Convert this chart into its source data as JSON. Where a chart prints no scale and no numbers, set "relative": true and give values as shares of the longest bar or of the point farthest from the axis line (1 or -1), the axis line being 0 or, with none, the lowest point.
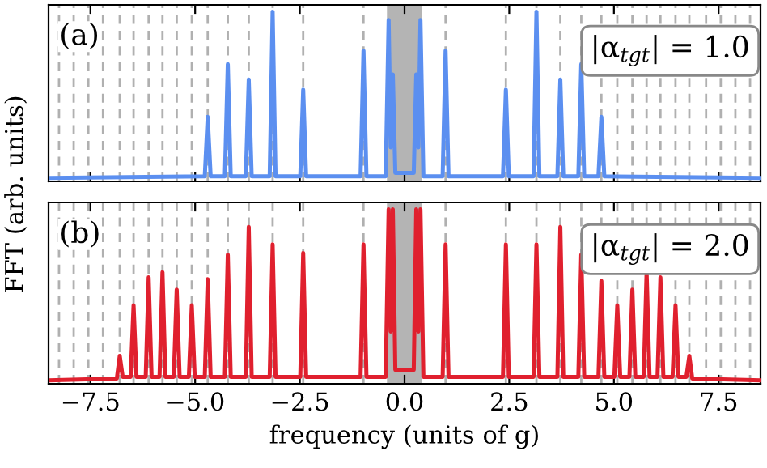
{
  "chart_data": [
    {
      "type": "line",
      "relative": true,
      "ylabel": "FFT (arb. units)",
      "tick_labels": false,
      "xlim": [
        -8.5,
        8.5
      ],
      "xticks": [
        -7.5,
        -5,
        -2.5,
        0,
        2.5,
        5,
        7.5
      ],
      "annotations": [
        "(a)",
        "|α$_{tgt}$| = 1.0"
      ],
      "bands": [
        {
          "axis": "x",
          "from": -0.42,
          "to": 0.42,
          "color": "#b4b4b4"
        }
      ],
      "ref_lines": [
        {
          "axis": "x",
          "value": -8.25,
          "color": "#b0b0b0",
          "line_style": "dashed"
        },
        {
          "axis": "x",
          "value": -7.9,
          "color": "#b0b0b0",
          "line_style": "dashed"
        },
        {
          "axis": "x",
          "value": -7.55,
          "color": "#b0b0b0",
          "line_style": "dashed"
        },
        {
          "axis": "x",
          "value": -7.2,
          "color": "#b0b0b0",
          "line_style": "dashed"
        },
        {
          "axis": "x",
          "value": -6.8,
          "color": "#b0b0b0",
          "line_style": "dashed"
        },
        {
          "axis": "x",
          "value": -6.47,
          "color": "#b0b0b0",
          "line_style": "dashed"
        },
        {
          "axis": "x",
          "value": -6.11,
          "color": "#b0b0b0",
          "line_style": "dashed"
        },
        {
          "axis": "x",
          "value": -5.78,
          "color": "#b0b0b0",
          "line_style": "dashed"
        },
        {
          "axis": "x",
          "value": -5.44,
          "color": "#b0b0b0",
          "line_style": "dashed"
        },
        {
          "axis": "x",
          "value": -5.08,
          "color": "#b0b0b0",
          "line_style": "dashed"
        },
        {
          "axis": "x",
          "value": -4.7,
          "color": "#b0b0b0",
          "line_style": "dashed"
        },
        {
          "axis": "x",
          "value": -4.22,
          "color": "#b0b0b0",
          "line_style": "dashed"
        },
        {
          "axis": "x",
          "value": -3.72,
          "color": "#b0b0b0",
          "line_style": "dashed"
        },
        {
          "axis": "x",
          "value": -3.15,
          "color": "#b0b0b0",
          "line_style": "dashed"
        },
        {
          "axis": "x",
          "value": -2.42,
          "color": "#b0b0b0",
          "line_style": "dashed"
        },
        {
          "axis": "x",
          "value": -0.98,
          "color": "#b0b0b0",
          "line_style": "dashed"
        },
        {
          "axis": "x",
          "value": 0.98,
          "color": "#b0b0b0",
          "line_style": "dashed"
        },
        {
          "axis": "x",
          "value": 2.42,
          "color": "#b0b0b0",
          "line_style": "dashed"
        },
        {
          "axis": "x",
          "value": 3.15,
          "color": "#b0b0b0",
          "line_style": "dashed"
        },
        {
          "axis": "x",
          "value": 3.72,
          "color": "#b0b0b0",
          "line_style": "dashed"
        },
        {
          "axis": "x",
          "value": 4.22,
          "color": "#b0b0b0",
          "line_style": "dashed"
        },
        {
          "axis": "x",
          "value": 4.7,
          "color": "#b0b0b0",
          "line_style": "dashed"
        },
        {
          "axis": "x",
          "value": 5.08,
          "color": "#b0b0b0",
          "line_style": "dashed"
        },
        {
          "axis": "x",
          "value": 5.44,
          "color": "#b0b0b0",
          "line_style": "dashed"
        },
        {
          "axis": "x",
          "value": 5.78,
          "color": "#b0b0b0",
          "line_style": "dashed"
        },
        {
          "axis": "x",
          "value": 6.11,
          "color": "#b0b0b0",
          "line_style": "dashed"
        },
        {
          "axis": "x",
          "value": 6.47,
          "color": "#b0b0b0",
          "line_style": "dashed"
        },
        {
          "axis": "x",
          "value": 6.8,
          "color": "#b0b0b0",
          "line_style": "dashed"
        },
        {
          "axis": "x",
          "value": 7.2,
          "color": "#b0b0b0",
          "line_style": "dashed"
        },
        {
          "axis": "x",
          "value": 7.55,
          "color": "#b0b0b0",
          "line_style": "dashed"
        },
        {
          "axis": "x",
          "value": 7.9,
          "color": "#b0b0b0",
          "line_style": "dashed"
        },
        {
          "axis": "x",
          "value": 8.25,
          "color": "#b0b0b0",
          "line_style": "dashed"
        }
      ],
      "series": [
        {
          "color": "#5b8ff0",
          "x": [
            -8.5,
            -4.77,
            -4.7,
            -4.63,
            -4.29,
            -4.22,
            -4.15,
            -3.79,
            -3.72,
            -3.65,
            -3.22,
            -3.15,
            -3.08,
            -2.49,
            -2.42,
            -2.35,
            -1.05,
            -0.98,
            -0.91,
            -0.45,
            -0.38,
            -0.33,
            -0.28,
            -0.22,
            0.22,
            0.28,
            0.33,
            0.38,
            0.45,
            0.91,
            0.98,
            1.05,
            2.35,
            2.42,
            2.49,
            3.08,
            3.15,
            3.22,
            3.65,
            3.72,
            3.79,
            4.15,
            4.22,
            4.29,
            4.63,
            4.7,
            4.77,
            8.5
          ],
          "values": [
            0.02,
            0.03,
            0.38,
            0.03,
            0.03,
            0.69,
            0.03,
            0.03,
            0.6,
            0.03,
            0.03,
            1,
            0.03,
            0.03,
            0.54,
            0.03,
            0.03,
            0.77,
            0.03,
            0.03,
            0.95,
            0.2,
            0.63,
            0.05,
            0.05,
            0.63,
            0.2,
            0.95,
            0.03,
            0.03,
            0.77,
            0.03,
            0.03,
            0.54,
            0.03,
            0.03,
            1,
            0.03,
            0.03,
            0.6,
            0.03,
            0.03,
            0.69,
            0.03,
            0.03,
            0.38,
            0.03,
            0.02
          ]
        }
      ]
    },
    {
      "type": "line",
      "relative": true,
      "xlabel": "frequency (units of g)",
      "tick_labels": "x",
      "xlim": [
        -8.5,
        8.5
      ],
      "xticks": [
        {
          "value": -7.5,
          "label": "−7.5"
        },
        {
          "value": -5,
          "label": "−5.0"
        },
        {
          "value": -2.5,
          "label": "−2.5"
        },
        {
          "value": 0,
          "label": "0.0"
        },
        {
          "value": 2.5,
          "label": "2.5"
        },
        {
          "value": 5,
          "label": "5.0"
        },
        {
          "value": 7.5,
          "label": "7.5"
        }
      ],
      "annotations": [
        "(b)",
        "|α$_{tgt}$| = 2.0"
      ],
      "bands": [
        {
          "axis": "x",
          "from": -0.42,
          "to": 0.42,
          "color": "#b4b4b4"
        }
      ],
      "ref_lines": [
        {
          "axis": "x",
          "value": -8.25,
          "color": "#b0b0b0",
          "line_style": "dashed"
        },
        {
          "axis": "x",
          "value": -7.9,
          "color": "#b0b0b0",
          "line_style": "dashed"
        },
        {
          "axis": "x",
          "value": -7.55,
          "color": "#b0b0b0",
          "line_style": "dashed"
        },
        {
          "axis": "x",
          "value": -7.2,
          "color": "#b0b0b0",
          "line_style": "dashed"
        },
        {
          "axis": "x",
          "value": -6.8,
          "color": "#b0b0b0",
          "line_style": "dashed"
        },
        {
          "axis": "x",
          "value": -6.47,
          "color": "#b0b0b0",
          "line_style": "dashed"
        },
        {
          "axis": "x",
          "value": -6.11,
          "color": "#b0b0b0",
          "line_style": "dashed"
        },
        {
          "axis": "x",
          "value": -5.78,
          "color": "#b0b0b0",
          "line_style": "dashed"
        },
        {
          "axis": "x",
          "value": -5.44,
          "color": "#b0b0b0",
          "line_style": "dashed"
        },
        {
          "axis": "x",
          "value": -5.08,
          "color": "#b0b0b0",
          "line_style": "dashed"
        },
        {
          "axis": "x",
          "value": -4.7,
          "color": "#b0b0b0",
          "line_style": "dashed"
        },
        {
          "axis": "x",
          "value": -4.22,
          "color": "#b0b0b0",
          "line_style": "dashed"
        },
        {
          "axis": "x",
          "value": -3.72,
          "color": "#b0b0b0",
          "line_style": "dashed"
        },
        {
          "axis": "x",
          "value": -3.15,
          "color": "#b0b0b0",
          "line_style": "dashed"
        },
        {
          "axis": "x",
          "value": -2.42,
          "color": "#b0b0b0",
          "line_style": "dashed"
        },
        {
          "axis": "x",
          "value": -0.98,
          "color": "#b0b0b0",
          "line_style": "dashed"
        },
        {
          "axis": "x",
          "value": 0.98,
          "color": "#b0b0b0",
          "line_style": "dashed"
        },
        {
          "axis": "x",
          "value": 2.42,
          "color": "#b0b0b0",
          "line_style": "dashed"
        },
        {
          "axis": "x",
          "value": 3.15,
          "color": "#b0b0b0",
          "line_style": "dashed"
        },
        {
          "axis": "x",
          "value": 3.72,
          "color": "#b0b0b0",
          "line_style": "dashed"
        },
        {
          "axis": "x",
          "value": 4.22,
          "color": "#b0b0b0",
          "line_style": "dashed"
        },
        {
          "axis": "x",
          "value": 4.7,
          "color": "#b0b0b0",
          "line_style": "dashed"
        },
        {
          "axis": "x",
          "value": 5.08,
          "color": "#b0b0b0",
          "line_style": "dashed"
        },
        {
          "axis": "x",
          "value": 5.44,
          "color": "#b0b0b0",
          "line_style": "dashed"
        },
        {
          "axis": "x",
          "value": 5.78,
          "color": "#b0b0b0",
          "line_style": "dashed"
        },
        {
          "axis": "x",
          "value": 6.11,
          "color": "#b0b0b0",
          "line_style": "dashed"
        },
        {
          "axis": "x",
          "value": 6.47,
          "color": "#b0b0b0",
          "line_style": "dashed"
        },
        {
          "axis": "x",
          "value": 6.8,
          "color": "#b0b0b0",
          "line_style": "dashed"
        },
        {
          "axis": "x",
          "value": 7.2,
          "color": "#b0b0b0",
          "line_style": "dashed"
        },
        {
          "axis": "x",
          "value": 7.55,
          "color": "#b0b0b0",
          "line_style": "dashed"
        },
        {
          "axis": "x",
          "value": 7.9,
          "color": "#b0b0b0",
          "line_style": "dashed"
        },
        {
          "axis": "x",
          "value": 8.25,
          "color": "#b0b0b0",
          "line_style": "dashed"
        }
      ],
      "series": [
        {
          "color": "#e0202e",
          "x": [
            -8.5,
            -6.87,
            -6.8,
            -6.73,
            -6.54,
            -6.47,
            -6.4,
            -6.18,
            -6.11,
            -6.04,
            -5.85,
            -5.78,
            -5.71,
            -5.51,
            -5.44,
            -5.37,
            -5.15,
            -5.08,
            -5.01,
            -4.77,
            -4.7,
            -4.63,
            -4.29,
            -4.22,
            -4.15,
            -3.79,
            -3.72,
            -3.65,
            -3.22,
            -3.15,
            -3.08,
            -2.49,
            -2.42,
            -2.35,
            -1.05,
            -0.98,
            -0.91,
            -0.45,
            -0.38,
            -0.33,
            -0.28,
            -0.22,
            0.22,
            0.28,
            0.33,
            0.38,
            0.45,
            0.91,
            0.98,
            1.05,
            2.35,
            2.42,
            2.49,
            3.08,
            3.15,
            3.22,
            3.65,
            3.72,
            3.79,
            4.15,
            4.22,
            4.29,
            4.63,
            4.7,
            4.77,
            5.01,
            5.08,
            5.15,
            5.37,
            5.44,
            5.51,
            5.71,
            5.78,
            5.85,
            6.04,
            6.11,
            6.18,
            6.4,
            6.47,
            6.54,
            6.73,
            6.8,
            6.87,
            8.5
          ],
          "values": [
            0.02,
            0.03,
            0.16,
            0.04,
            0.04,
            0.45,
            0.04,
            0.04,
            0.61,
            0.04,
            0.04,
            0.64,
            0.04,
            0.04,
            0.54,
            0.04,
            0.04,
            0.45,
            0.04,
            0.04,
            0.6,
            0.04,
            0.04,
            0.74,
            0.04,
            0.04,
            0.9,
            0.04,
            0.04,
            0.8,
            0.04,
            0.04,
            0.75,
            0.04,
            0.04,
            0.8,
            0.04,
            0.04,
            1,
            0.3,
            1,
            0.08,
            0.08,
            1,
            0.3,
            1,
            0.04,
            0.04,
            0.8,
            0.04,
            0.04,
            0.8,
            0.04,
            0.04,
            0.8,
            0.04,
            0.04,
            0.9,
            0.04,
            0.04,
            0.74,
            0.04,
            0.04,
            0.59,
            0.04,
            0.04,
            0.45,
            0.04,
            0.04,
            0.54,
            0.04,
            0.04,
            0.64,
            0.04,
            0.04,
            0.61,
            0.04,
            0.04,
            0.45,
            0.04,
            0.04,
            0.16,
            0.03,
            0.02
          ]
        }
      ]
    }
  ]
}
